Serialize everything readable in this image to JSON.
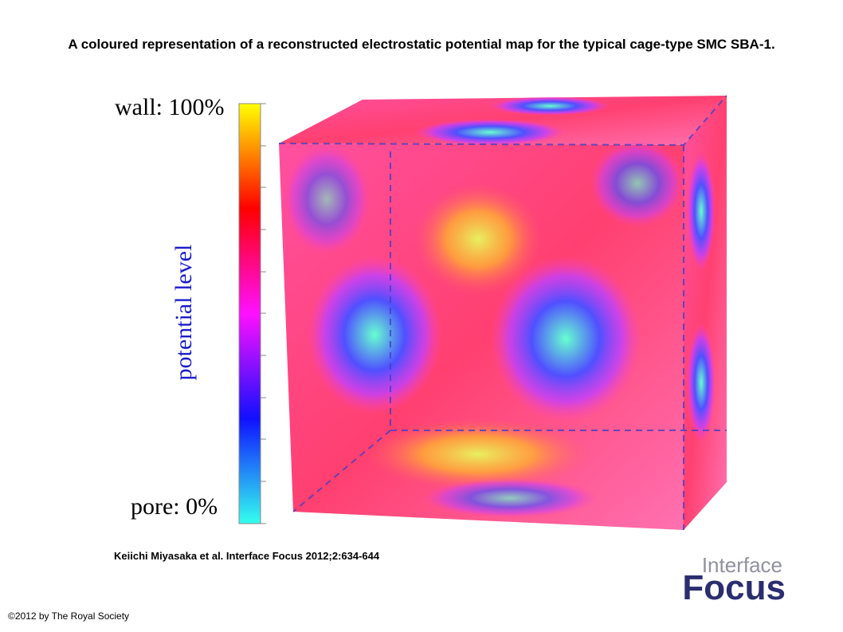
{
  "header": {
    "title": "A coloured representation of a reconstructed electrostatic potential map for the typical cage-type SMC SBA-1."
  },
  "figure": {
    "top_label": "wall: 100%",
    "bottom_label": "pore: 0%",
    "axis_label": "potential level"
  },
  "citation": "Keiichi Miyasaka et al. Interface Focus 2012;2:634-644",
  "logo": {
    "line1": "Interface",
    "line2": "Focus"
  },
  "footer": {
    "copyright": "©2012 by The Royal Society"
  }
}
